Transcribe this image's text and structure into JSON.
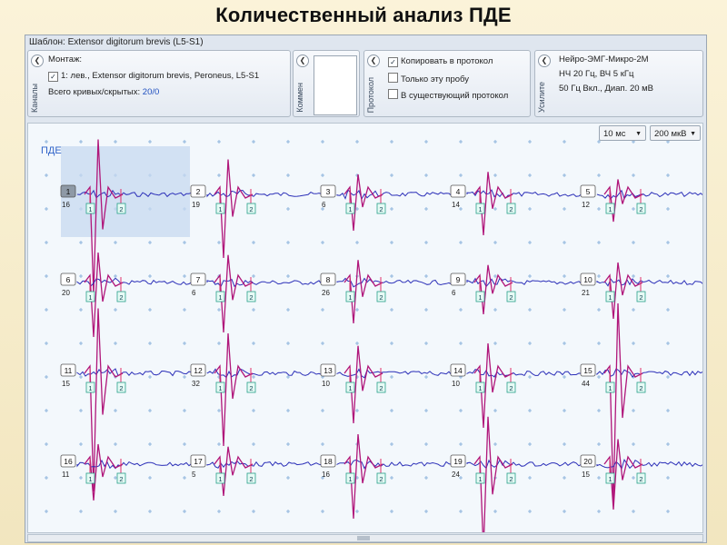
{
  "title": "Количественный анализ ПДЕ",
  "window_title": "Шаблон: Extensor digitorum brevis (L5-S1)",
  "channels": {
    "group_label": "Каналы",
    "montage_label": "Монтаж:",
    "montage_item": "1: лев., Extensor digitorum brevis, Peroneus, L5-S1",
    "total_label": "Всего кривых/скрытых:",
    "total_value": "20/0"
  },
  "comment": {
    "group_label": "Коммен"
  },
  "protocol": {
    "group_label": "Протокол",
    "options": [
      {
        "label": "Копировать в протокол",
        "checked": true
      },
      {
        "label": "Только эту пробу",
        "checked": false
      },
      {
        "label": "В существующий протокол",
        "checked": false
      }
    ]
  },
  "amplifier": {
    "group_label": "Усилите",
    "lines": [
      "Нейро-ЭМГ-Микро-2М",
      "НЧ  20 Гц, ВЧ  5 кГц",
      "50 Гц  Вкл., Диап.  20 мВ"
    ]
  },
  "sweep": {
    "value": "10 мс"
  },
  "sensitivity": {
    "value": "200 мкВ"
  },
  "plot_label": "ПДЕ",
  "units": [
    {
      "n": "1",
      "count": "16"
    },
    {
      "n": "2",
      "count": "19"
    },
    {
      "n": "3",
      "count": "6"
    },
    {
      "n": "4",
      "count": "14"
    },
    {
      "n": "5",
      "count": "12"
    },
    {
      "n": "6",
      "count": "20"
    },
    {
      "n": "7",
      "count": "6"
    },
    {
      "n": "8",
      "count": "26"
    },
    {
      "n": "9",
      "count": "6"
    },
    {
      "n": "10",
      "count": "21"
    },
    {
      "n": "11",
      "count": "15"
    },
    {
      "n": "12",
      "count": "32"
    },
    {
      "n": "13",
      "count": "10"
    },
    {
      "n": "14",
      "count": "10"
    },
    {
      "n": "15",
      "count": "44"
    },
    {
      "n": "16",
      "count": "11"
    },
    {
      "n": "17",
      "count": "5"
    },
    {
      "n": "18",
      "count": "16"
    },
    {
      "n": "19",
      "count": "24"
    },
    {
      "n": "20",
      "count": "15"
    }
  ],
  "marker_labels": [
    "1",
    "2"
  ],
  "selected_unit": "1",
  "colors": {
    "trace_blue": "#2b2fb8",
    "trace_magenta": "#b0167a",
    "selection": "#c7daf0",
    "marker": "#2aa08a"
  }
}
